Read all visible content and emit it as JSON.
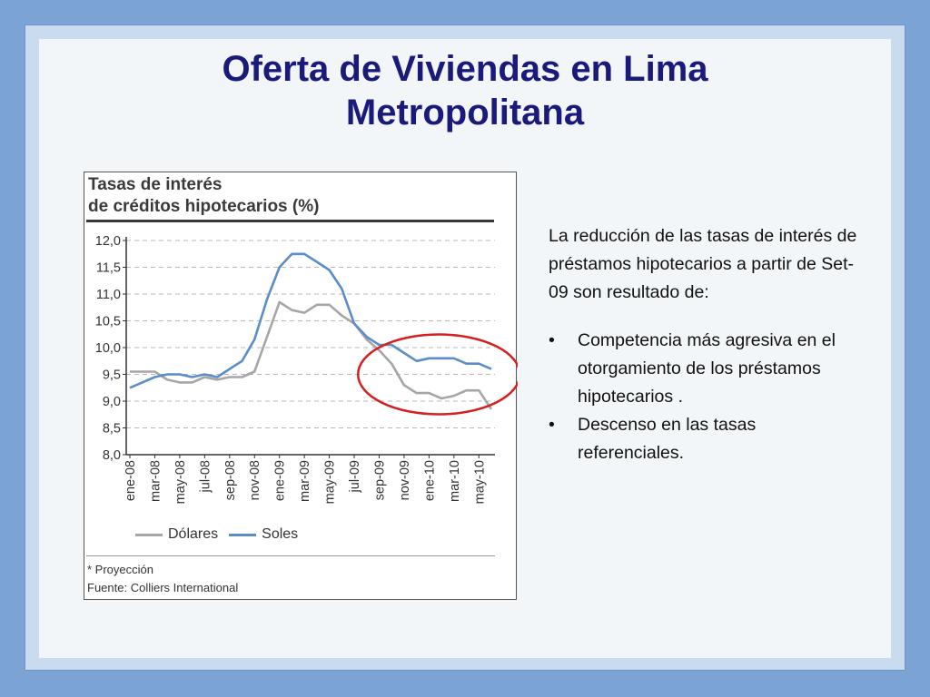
{
  "slide": {
    "title_line1": "Oferta de Viviendas en Lima",
    "title_line2": "Metropolitana"
  },
  "chart_box": {
    "title_line1": "Tasas de interés",
    "title_line2": "de créditos hipotecarios (%)",
    "note_line1": "* Proyección",
    "note_line2": "Fuente: Colliers International"
  },
  "text": {
    "paragraph": "La reducción de las tasas de interés de préstamos hipotecarios a partir de Set-09 son resultado de:",
    "bullet_symbol": "•",
    "bullets": [
      "Competencia más agresiva en el otorgamiento de los préstamos hipotecarios .",
      "Descenso en las tasas referenciales."
    ]
  },
  "colors": {
    "title": "#1a1a7a",
    "dolares": "#a6a6a6",
    "soles": "#5b8ec8",
    "highlight_circle": "#d42020"
  },
  "chart_data": {
    "type": "line",
    "title": "Tasas de interés de créditos hipotecarios (%)",
    "x_tick_labels": [
      "ene-08",
      "mar-08",
      "may-08",
      "jul-08",
      "sep-08",
      "nov-08",
      "ene-09",
      "mar-09",
      "may-09",
      "jul-09",
      "sep-09",
      "nov-09",
      "ene-10",
      "mar-10",
      "may-10"
    ],
    "y_tick_labels": [
      "12,0",
      "11,5",
      "11,0",
      "10,5",
      "10,0",
      "9,5",
      "9,0",
      "8,5",
      "8,0"
    ],
    "ylim": [
      8.0,
      12.0
    ],
    "y_grid": true,
    "legend_position": "bottom",
    "highlight": "circle around sep-09 to may-10",
    "series": [
      {
        "name": "Dólares",
        "x": [
          "2008-01",
          "2008-02",
          "2008-03",
          "2008-04",
          "2008-05",
          "2008-06",
          "2008-07",
          "2008-08",
          "2008-09",
          "2008-10",
          "2008-11",
          "2008-12",
          "2009-01",
          "2009-02",
          "2009-03",
          "2009-04",
          "2009-05",
          "2009-06",
          "2009-07",
          "2009-08",
          "2009-09",
          "2009-10",
          "2009-11",
          "2009-12",
          "2010-01",
          "2010-02",
          "2010-03",
          "2010-04",
          "2010-05",
          "2010-06"
        ],
        "values": [
          9.55,
          9.55,
          9.55,
          9.4,
          9.35,
          9.35,
          9.45,
          9.4,
          9.45,
          9.45,
          9.55,
          10.2,
          10.85,
          10.7,
          10.65,
          10.8,
          10.8,
          10.6,
          10.45,
          10.15,
          9.95,
          9.7,
          9.3,
          9.15,
          9.15,
          9.05,
          9.1,
          9.2,
          9.2,
          8.85
        ]
      },
      {
        "name": "Soles",
        "x": [
          "2008-01",
          "2008-02",
          "2008-03",
          "2008-04",
          "2008-05",
          "2008-06",
          "2008-07",
          "2008-08",
          "2008-09",
          "2008-10",
          "2008-11",
          "2008-12",
          "2009-01",
          "2009-02",
          "2009-03",
          "2009-04",
          "2009-05",
          "2009-06",
          "2009-07",
          "2009-08",
          "2009-09",
          "2009-10",
          "2009-11",
          "2009-12",
          "2010-01",
          "2010-02",
          "2010-03",
          "2010-04",
          "2010-05",
          "2010-06"
        ],
        "values": [
          9.25,
          9.35,
          9.45,
          9.5,
          9.5,
          9.45,
          9.5,
          9.45,
          9.6,
          9.75,
          10.15,
          10.9,
          11.5,
          11.75,
          11.75,
          11.6,
          11.45,
          11.1,
          10.45,
          10.2,
          10.05,
          10.05,
          9.9,
          9.75,
          9.8,
          9.8,
          9.8,
          9.7,
          9.7,
          9.6
        ]
      }
    ]
  }
}
